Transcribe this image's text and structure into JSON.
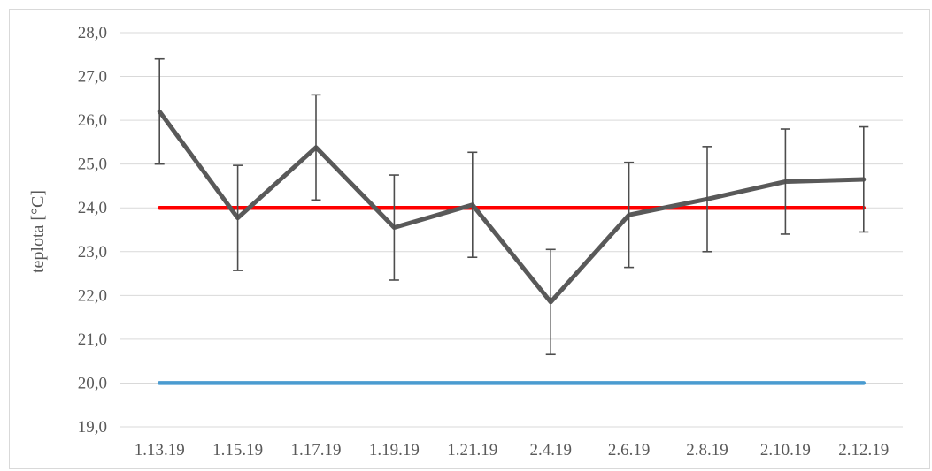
{
  "chart_data": {
    "type": "line",
    "title": "",
    "xlabel": "",
    "ylabel": "teplota [°C]",
    "ylim": [
      19.0,
      28.0
    ],
    "y_ticks": [
      "19,0",
      "20,0",
      "21,0",
      "22,0",
      "23,0",
      "24,0",
      "25,0",
      "26,0",
      "27,0",
      "28,0"
    ],
    "y_tick_values": [
      19,
      20,
      21,
      22,
      23,
      24,
      25,
      26,
      27,
      28
    ],
    "categories": [
      "1.13.19",
      "1.15.19",
      "1.17.19",
      "1.19.19",
      "1.21.19",
      "2.4.19",
      "2.6.19",
      "2.8.19",
      "2.10.19",
      "2.12.19"
    ],
    "grid": true,
    "legend": "none",
    "series": [
      {
        "color": "#595959",
        "values": [
          26.2,
          23.77,
          25.38,
          23.55,
          24.07,
          21.85,
          23.84,
          24.2,
          24.6,
          24.65
        ],
        "error": [
          1.2,
          1.2,
          1.2,
          1.2,
          1.2,
          1.2,
          1.2,
          1.2,
          1.2,
          1.2
        ]
      },
      {
        "color": "#ff0000",
        "values": [
          24.0,
          24.0,
          24.0,
          24.0,
          24.0,
          24.0,
          24.0,
          24.0,
          24.0,
          24.0
        ]
      },
      {
        "color": "#4a9bd0",
        "values": [
          20.0,
          20.0,
          20.0,
          20.0,
          20.0,
          20.0,
          20.0,
          20.0,
          20.0,
          20.0
        ]
      }
    ]
  }
}
